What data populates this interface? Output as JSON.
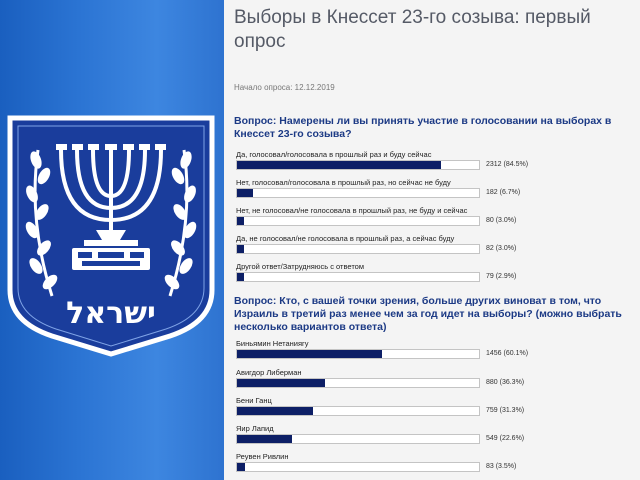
{
  "emblem": {
    "hebrew_text": "ישראל",
    "colors": {
      "background": "#2b74d3",
      "shield": "#1a3d9c",
      "border": "#ffffff"
    },
    "icon": "menorah-emblem"
  },
  "poll": {
    "title": "Выборы в Кнессет 23-го созыва: первый опрос",
    "start_date": "Начало опроса: 12.12.2019",
    "questions": [
      {
        "text": "Вопрос: Намерены ли вы принять участие в голосовании на выборах в Кнессет 23-го созыва?",
        "answers": [
          {
            "label": "Да, голосовал/голосовала в прошлый раз и буду сейчас",
            "count": "2312 (84.5%)",
            "percent": 84.5
          },
          {
            "label": "Нет, голосовал/голосовала в прошлый раз, но сейчас не буду",
            "count": "182 (6.7%)",
            "percent": 6.7
          },
          {
            "label": "Нет, не голосовал/не голосовала в прошлый раз, не буду и сейчас",
            "count": "80 (3.0%)",
            "percent": 3.0
          },
          {
            "label": "Да, не голосовал/не голосовала в прошлый раз, а сейчас буду",
            "count": "82 (3.0%)",
            "percent": 3.0
          },
          {
            "label": "Другой ответ/Затрудняюсь с ответом",
            "count": "79 (2.9%)",
            "percent": 2.9
          }
        ]
      },
      {
        "text": "Вопрос: Кто, с вашей точки зрения, больше других виноват в том, что Израиль в третий раз менее чем за год идет на выборы? (можно выбрать несколько вариантов ответа)",
        "answers": [
          {
            "label": "Биньямин Нетаниягу",
            "count": "1456 (60.1%)",
            "percent": 60.1
          },
          {
            "label": "Авигдор Либерман",
            "count": "880 (36.3%)",
            "percent": 36.3
          },
          {
            "label": "Бени Ганц",
            "count": "759 (31.3%)",
            "percent": 31.3
          },
          {
            "label": "Яир Лапид",
            "count": "549 (22.6%)",
            "percent": 22.6
          },
          {
            "label": "Реувен Ривлин",
            "count": "83 (3.5%)",
            "percent": 3.5
          }
        ]
      }
    ]
  }
}
